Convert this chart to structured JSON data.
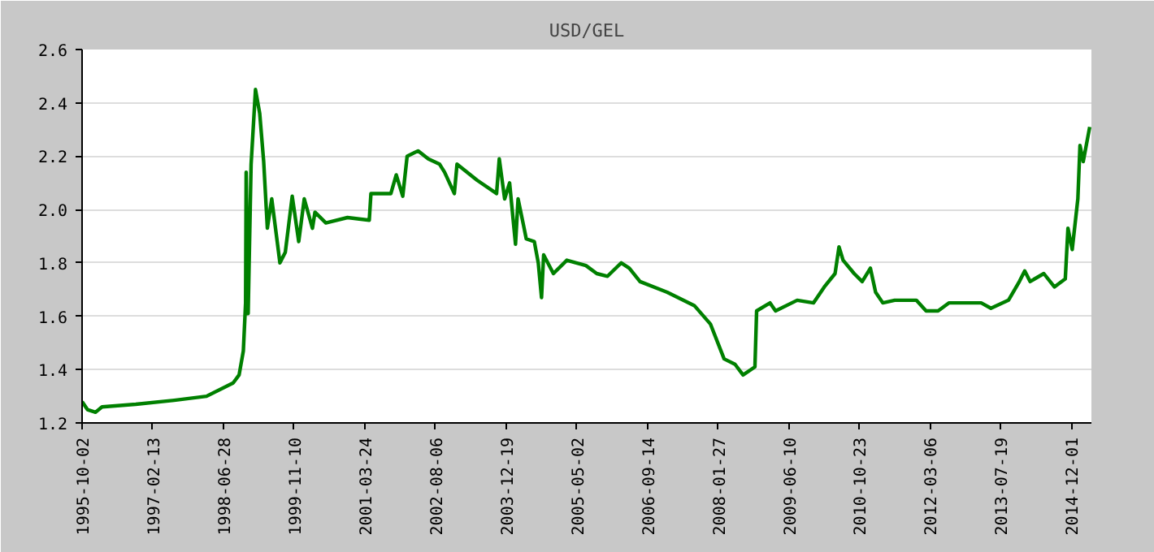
{
  "chart_data": {
    "type": "line",
    "title": "USD/GEL",
    "x": [
      "1995-10-02",
      "1995-11-09",
      "1996-01-05",
      "1996-02-20",
      "1996-10-16",
      "1997-07-15",
      "1998-03-01",
      "1998-09-05",
      "1998-10-17",
      "1998-11-16",
      "1998-12-02",
      "1998-12-06",
      "1998-12-20",
      "1999-01-10",
      "1999-02-10",
      "1999-03-12",
      "1999-04-09",
      "1999-05-05",
      "1999-06-05",
      "1999-08-02",
      "1999-09-09",
      "1999-10-28",
      "1999-12-13",
      "2000-01-21",
      "2000-03-19",
      "2000-04-06",
      "2000-06-22",
      "2000-11-22",
      "2001-04-25",
      "2001-05-07",
      "2001-09-25",
      "2001-11-02",
      "2001-12-18",
      "2002-01-18",
      "2002-04-05",
      "2002-06-17",
      "2002-09-05",
      "2002-10-10",
      "2002-12-18",
      "2003-01-06",
      "2003-05-28",
      "2003-10-13",
      "2003-11-01",
      "2003-12-09",
      "2004-01-13",
      "2004-02-24",
      "2004-03-13",
      "2004-04-21",
      "2004-05-10",
      "2004-07-06",
      "2004-08-03",
      "2004-08-26",
      "2004-09-10",
      "2004-11-18",
      "2005-02-21",
      "2005-07-06",
      "2005-09-21",
      "2005-12-06",
      "2006-03-13",
      "2006-05-09",
      "2006-07-24",
      "2007-02-01",
      "2007-08-12",
      "2007-12-05",
      "2008-03-10",
      "2008-05-26",
      "2008-07-22",
      "2008-10-14",
      "2008-10-26",
      "2009-01-29",
      "2009-03-09",
      "2009-08-09",
      "2009-12-02",
      "2010-02-17",
      "2010-05-04",
      "2010-06-01",
      "2010-06-30",
      "2010-09-16",
      "2010-11-12",
      "2011-01-09",
      "2011-02-15",
      "2011-04-07",
      "2011-06-30",
      "2011-11-30",
      "2012-02-07",
      "2012-05-02",
      "2012-07-17",
      "2013-03-03",
      "2013-05-11",
      "2013-09-12",
      "2013-11-28",
      "2014-01-05",
      "2014-02-12",
      "2014-05-20",
      "2014-08-03",
      "2014-10-19",
      "2014-11-07",
      "2014-12-07",
      "2015-01-16",
      "2015-01-31",
      "2015-02-23",
      "2015-04-10"
    ],
    "series": [
      {
        "color": "#008000",
        "values": [
          1.28,
          1.25,
          1.24,
          1.26,
          1.27,
          1.285,
          1.3,
          1.35,
          1.38,
          1.47,
          1.65,
          2.14,
          1.61,
          2.17,
          2.45,
          2.36,
          2.18,
          1.93,
          2.04,
          1.8,
          1.84,
          2.05,
          1.88,
          2.04,
          1.93,
          1.99,
          1.95,
          1.97,
          1.96,
          2.06,
          2.06,
          2.13,
          2.05,
          2.2,
          2.22,
          2.19,
          2.17,
          2.14,
          2.06,
          2.17,
          2.11,
          2.06,
          2.19,
          2.04,
          2.1,
          1.87,
          2.04,
          1.94,
          1.89,
          1.88,
          1.8,
          1.67,
          1.83,
          1.76,
          1.81,
          1.79,
          1.76,
          1.75,
          1.8,
          1.78,
          1.73,
          1.69,
          1.64,
          1.57,
          1.44,
          1.42,
          1.38,
          1.41,
          1.62,
          1.65,
          1.62,
          1.66,
          1.65,
          1.71,
          1.76,
          1.86,
          1.81,
          1.76,
          1.73,
          1.78,
          1.69,
          1.65,
          1.66,
          1.66,
          1.62,
          1.62,
          1.65,
          1.65,
          1.63,
          1.66,
          1.73,
          1.77,
          1.73,
          1.76,
          1.71,
          1.74,
          1.93,
          1.85,
          2.04,
          2.24,
          2.18,
          2.31
        ]
      }
    ],
    "xlim": [
      "1995-10-02",
      "2015-04-22"
    ],
    "xticks": [
      "1995-10-02",
      "1997-02-13",
      "1998-06-28",
      "1999-11-10",
      "2001-03-24",
      "2002-08-06",
      "2003-12-19",
      "2005-05-02",
      "2006-09-14",
      "2008-01-27",
      "2009-06-10",
      "2010-10-23",
      "2012-03-06",
      "2013-07-19",
      "2014-12-01"
    ],
    "ylim": [
      1.2,
      2.6
    ],
    "yticks": [
      1.2,
      1.4,
      1.6,
      1.8,
      {
        "value": 2,
        "label": "2.0"
      },
      2.2,
      2.4,
      2.6
    ],
    "grid": "y",
    "marker": "none",
    "line_style": "solid"
  }
}
